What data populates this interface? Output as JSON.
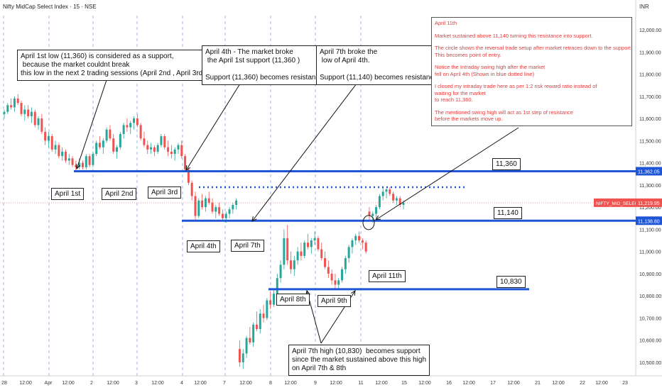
{
  "header": {
    "title": "Nifty MidCap Select Index · 15 · NSE",
    "currency": "INR"
  },
  "colors": {
    "up": "#26a69a",
    "down": "#ef5350",
    "level_line": "#1e56d6",
    "annotation_text": "#e23b3b",
    "price_tag": "#ef5350"
  },
  "price_axis": {
    "ticks": [
      "12,000.00",
      "11,900.00",
      "11,800.00",
      "11,700.00",
      "11,600.00",
      "11,500.00",
      "11,400.00",
      "11,300.00",
      "11,200.00",
      "11,100.00",
      "11,000.00",
      "10,900.00",
      "10,800.00",
      "10,700.00",
      "10,600.00",
      "10,500.00"
    ],
    "highlights": [
      {
        "label": "11,362.05",
        "value": 11362.05
      },
      {
        "label": "11,138.80",
        "value": 11138.8
      }
    ],
    "current_symbol": "NIFTY_MID_SELECT",
    "current_price": "11,219.95"
  },
  "time_axis": {
    "ticks": [
      "28",
      "12:00",
      "Apr",
      "12:00",
      "2",
      "12:00",
      "3",
      "12:00",
      "4",
      "12:00",
      "7",
      "12:00",
      "8",
      "12:00",
      "9",
      "12:00",
      "11",
      "12:00",
      "15",
      "12:00",
      "16",
      "12:00",
      "17",
      "12:00",
      "21",
      "12:00",
      "22",
      "12:00",
      "23"
    ]
  },
  "chart_data": {
    "type": "candlestick",
    "title": "Nifty MidCap Select Index · 15 · NSE",
    "ylim": [
      10460,
      12060
    ],
    "sessions": [
      "Mar 28",
      "Apr 1",
      "Apr 2",
      "Apr 3",
      "Apr 4",
      "Apr 7",
      "Apr 8",
      "Apr 9",
      "Apr 11"
    ],
    "levels": [
      {
        "label": "11,360",
        "value": 11362.05
      },
      {
        "label": "11,140",
        "value": 11138.8
      },
      {
        "label": "10,830",
        "value": 10830
      }
    ],
    "swing_high_dotted": 11290,
    "entry_circle_price": 11140,
    "candles": [
      [
        11620,
        11640,
        11600,
        11630
      ],
      [
        11630,
        11670,
        11620,
        11660
      ],
      [
        11660,
        11690,
        11640,
        11650
      ],
      [
        11650,
        11700,
        11630,
        11690
      ],
      [
        11690,
        11710,
        11660,
        11670
      ],
      [
        11670,
        11680,
        11610,
        11620
      ],
      [
        11620,
        11660,
        11590,
        11640
      ],
      [
        11640,
        11660,
        11600,
        11610
      ],
      [
        11610,
        11650,
        11580,
        11630
      ],
      [
        11630,
        11640,
        11560,
        11570
      ],
      [
        11570,
        11610,
        11550,
        11600
      ],
      [
        11600,
        11620,
        11530,
        11540
      ],
      [
        11540,
        11560,
        11480,
        11500
      ],
      [
        11500,
        11540,
        11470,
        11520
      ],
      [
        11520,
        11530,
        11450,
        11460
      ],
      [
        11460,
        11500,
        11440,
        11480
      ],
      [
        11480,
        11490,
        11420,
        11430
      ],
      [
        11430,
        11470,
        11410,
        11450
      ],
      [
        11450,
        11460,
        11400,
        11410
      ],
      [
        11410,
        11440,
        11390,
        11420
      ],
      [
        11420,
        11430,
        11380,
        11390
      ],
      [
        11390,
        11410,
        11360,
        11380
      ],
      [
        11380,
        11420,
        11370,
        11400
      ],
      [
        11400,
        11410,
        11370,
        11380
      ],
      [
        11380,
        11440,
        11370,
        11430
      ],
      [
        11430,
        11440,
        11380,
        11390
      ],
      [
        11390,
        11450,
        11380,
        11440
      ],
      [
        11440,
        11500,
        11430,
        11490
      ],
      [
        11490,
        11520,
        11460,
        11470
      ],
      [
        11470,
        11510,
        11440,
        11500
      ],
      [
        11500,
        11560,
        11490,
        11550
      ],
      [
        11550,
        11570,
        11500,
        11510
      ],
      [
        11510,
        11530,
        11440,
        11450
      ],
      [
        11450,
        11480,
        11420,
        11470
      ],
      [
        11470,
        11540,
        11460,
        11530
      ],
      [
        11530,
        11580,
        11510,
        11570
      ],
      [
        11570,
        11600,
        11540,
        11560
      ],
      [
        11560,
        11590,
        11530,
        11580
      ],
      [
        11580,
        11610,
        11550,
        11600
      ],
      [
        11600,
        11620,
        11560,
        11570
      ],
      [
        11570,
        11580,
        11500,
        11510
      ],
      [
        11510,
        11540,
        11470,
        11480
      ],
      [
        11480,
        11500,
        11440,
        11460
      ],
      [
        11460,
        11490,
        11440,
        11470
      ],
      [
        11470,
        11480,
        11430,
        11450
      ],
      [
        11450,
        11490,
        11440,
        11480
      ],
      [
        11480,
        11530,
        11470,
        11520
      ],
      [
        11520,
        11530,
        11460,
        11470
      ],
      [
        11470,
        11500,
        11430,
        11450
      ],
      [
        11450,
        11480,
        11420,
        11440
      ],
      [
        11440,
        11470,
        11410,
        11460
      ],
      [
        11460,
        11490,
        11440,
        11480
      ],
      [
        11480,
        11500,
        11420,
        11430
      ],
      [
        11430,
        11440,
        11360,
        11370
      ],
      [
        11370,
        11380,
        11300,
        11310
      ],
      [
        11310,
        11320,
        11230,
        11250
      ],
      [
        11250,
        11270,
        11140,
        11160
      ],
      [
        11160,
        11240,
        11150,
        11230
      ],
      [
        11230,
        11260,
        11190,
        11200
      ],
      [
        11200,
        11250,
        11180,
        11240
      ],
      [
        11240,
        11270,
        11210,
        11220
      ],
      [
        11220,
        11240,
        11170,
        11180
      ],
      [
        11180,
        11210,
        11150,
        11200
      ],
      [
        11200,
        11220,
        11160,
        11170
      ],
      [
        11170,
        11190,
        11140,
        11150
      ],
      [
        11150,
        11180,
        11130,
        11170
      ],
      [
        11170,
        11200,
        11150,
        11190
      ],
      [
        11190,
        11220,
        11170,
        11210
      ],
      [
        11210,
        11240,
        11190,
        11230
      ],
      [
        10560,
        10600,
        10480,
        10500
      ],
      [
        10500,
        10560,
        10470,
        10540
      ],
      [
        10540,
        10620,
        10520,
        10610
      ],
      [
        10610,
        10660,
        10580,
        10590
      ],
      [
        10590,
        10680,
        10570,
        10670
      ],
      [
        10670,
        10730,
        10640,
        10650
      ],
      [
        10650,
        10740,
        10630,
        10720
      ],
      [
        10720,
        10760,
        10680,
        10700
      ],
      [
        10700,
        10790,
        10690,
        10780
      ],
      [
        10780,
        10820,
        10740,
        10760
      ],
      [
        10760,
        10830,
        10750,
        10810
      ],
      [
        10810,
        10900,
        10800,
        10880
      ],
      [
        10880,
        10960,
        10860,
        10940
      ],
      [
        10940,
        11100,
        10920,
        11060
      ],
      [
        11060,
        11120,
        10940,
        10960
      ],
      [
        10960,
        11000,
        10900,
        10920
      ],
      [
        10920,
        10980,
        10890,
        10960
      ],
      [
        10960,
        11020,
        10940,
        11000
      ],
      [
        11000,
        11040,
        10960,
        10980
      ],
      [
        10980,
        11050,
        10970,
        11040
      ],
      [
        11040,
        11080,
        11010,
        11020
      ],
      [
        11020,
        11060,
        10990,
        11050
      ],
      [
        11050,
        11090,
        11030,
        11060
      ],
      [
        11060,
        11070,
        11000,
        11010
      ],
      [
        11010,
        11040,
        10960,
        10970
      ],
      [
        10970,
        11000,
        10920,
        10930
      ],
      [
        10930,
        10960,
        10880,
        10900
      ],
      [
        10900,
        10920,
        10850,
        10870
      ],
      [
        10870,
        10900,
        10830,
        10850
      ],
      [
        10850,
        10880,
        10830,
        10870
      ],
      [
        10870,
        10930,
        10860,
        10920
      ],
      [
        10920,
        10980,
        10900,
        10970
      ],
      [
        10970,
        11030,
        10950,
        11020
      ],
      [
        11020,
        11060,
        10990,
        11050
      ],
      [
        11050,
        11080,
        11030,
        11070
      ],
      [
        11070,
        11090,
        11040,
        11050
      ],
      [
        11050,
        11060,
        11010,
        11040
      ],
      [
        11040,
        11050,
        10990,
        11000
      ],
      [
        11180,
        11200,
        11140,
        11160
      ],
      [
        11160,
        11180,
        11130,
        11170
      ],
      [
        11170,
        11210,
        11150,
        11200
      ],
      [
        11200,
        11260,
        11190,
        11250
      ],
      [
        11250,
        11290,
        11230,
        11270
      ],
      [
        11270,
        11285,
        11240,
        11280
      ],
      [
        11280,
        11290,
        11250,
        11260
      ],
      [
        11260,
        11270,
        11220,
        11230
      ],
      [
        11230,
        11250,
        11210,
        11240
      ],
      [
        11240,
        11250,
        11200,
        11210
      ],
      [
        11210,
        11230,
        11190,
        11220
      ]
    ]
  },
  "annotations": {
    "april1_note": "April 1st low (11,360) is considered as a support,\n because the market couldnt break\nthis low in the next 2 trading sessions (April 2nd , April 3rd)",
    "april4_note": "April 4th - The market broke\n the April 1st support (11,360 )\n\nSupport (11,360) becomes resistance",
    "april7_note": "April 7th broke the\n low of April 4th.\n\nSupport (11,140) becomes resistance",
    "april7_high_note": "April 7th high (10,830)  becomes support\nsince the market sustained above this high\non April 7th & 8th",
    "april11_note": {
      "heading": "April 11th",
      "paragraphs": [
        "Market sustained above 11,140 turning this resistance into support.",
        "The circle shows the reversal trade setup after market retraces down to the support.\nThis becomes point of entry.",
        "Notice the Intraday swing high after the market\nfell on April 4th (Shown in blue dotted line)",
        "I closed my intraday trade here as per 1:2 risk reward ratio instead of\nwaiting for the market\nto reach 11,360.",
        "The mentioned swing high will act as 1st step of resistance\nbefore the markets move up."
      ]
    },
    "day_labels": [
      "April 1st",
      "April 2nd",
      "April 3rd",
      "April 4th",
      "April 7th",
      "April 8th",
      "April 9th",
      "April 11th"
    ],
    "level_labels": [
      "11,360",
      "11,140",
      "10,830"
    ]
  }
}
